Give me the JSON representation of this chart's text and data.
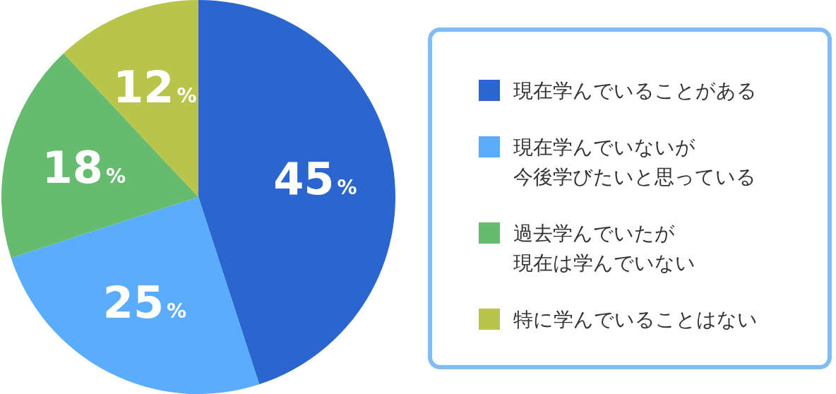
{
  "chart_data": {
    "type": "pie",
    "categories": [
      "現在学んでいることがある",
      "現在学んでいないが今後学びたいと思っている",
      "過去学んでいたが現在は学んでいない",
      "特に学んでいることはない"
    ],
    "values": [
      45,
      25,
      18,
      12
    ],
    "colors": [
      "#2b65cf",
      "#5aacfd",
      "#66bb6e",
      "#b8c44a"
    ],
    "value_labels": [
      "45%",
      "25%",
      "18%",
      "12%"
    ],
    "legend": "right"
  }
}
